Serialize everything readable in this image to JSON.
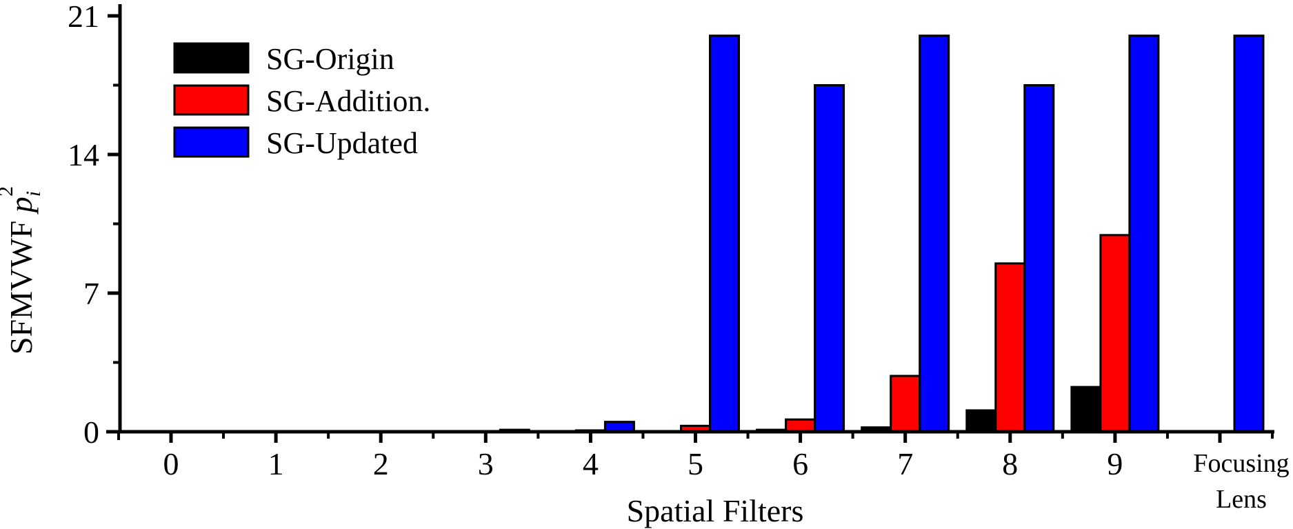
{
  "chart_data": {
    "type": "bar",
    "title": "",
    "xlabel": "Spatial Filters",
    "ylabel": "SFMVWF p_i^2",
    "ylabel_parts": {
      "main": "SFMVWF ",
      "var": "p",
      "sub": "i",
      "sup": "2"
    },
    "ylim": [
      0,
      21
    ],
    "yticks": [
      0,
      7,
      14,
      21
    ],
    "yminor_ticks": [
      3.5,
      10.5,
      17.5
    ],
    "grid": false,
    "legend_position": "upper-left",
    "categories": [
      "0",
      "1",
      "2",
      "3",
      "4",
      "5",
      "6",
      "7",
      "8",
      "9",
      "Focusing Lens"
    ],
    "category_label_lines": [
      [
        "0"
      ],
      [
        "1"
      ],
      [
        "2"
      ],
      [
        "3"
      ],
      [
        "4"
      ],
      [
        "5"
      ],
      [
        "6"
      ],
      [
        "7"
      ],
      [
        "8"
      ],
      [
        "9"
      ],
      [
        "Focusing",
        "Lens"
      ]
    ],
    "series": [
      {
        "name": "SG-Origin",
        "color": "#000000",
        "values": [
          0,
          0,
          0,
          0,
          0,
          0.02,
          0.1,
          0.22,
          1.08,
          2.26,
          0
        ]
      },
      {
        "name": "SG-Addition.",
        "color": "#ff0000",
        "values": [
          0,
          0,
          0,
          0,
          0.07,
          0.3,
          0.62,
          2.82,
          8.5,
          9.93,
          0
        ]
      },
      {
        "name": "SG-Updated",
        "color": "#0000ff",
        "values": [
          0,
          0,
          0.03,
          0.1,
          0.5,
          20.0,
          17.5,
          20.0,
          17.5,
          20.0,
          20.0
        ]
      }
    ]
  }
}
